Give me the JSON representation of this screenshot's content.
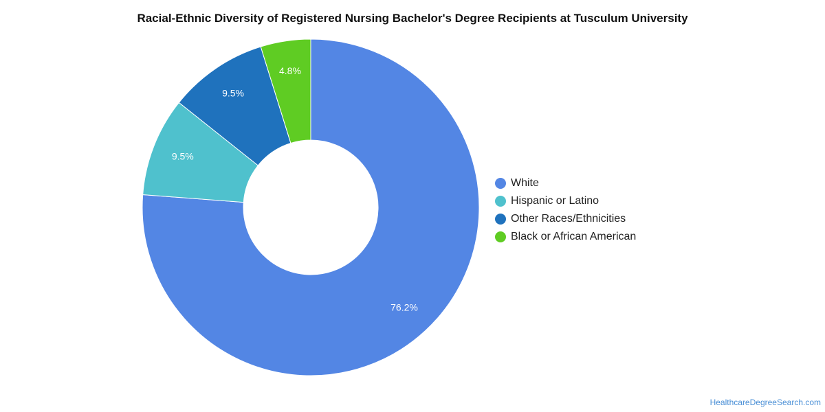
{
  "chart_data": {
    "type": "pie",
    "title": "Racial-Ethnic Diversity of Registered Nursing Bachelor's Degree Recipients at Tusculum University",
    "categories": [
      "White",
      "Hispanic or Latino",
      "Other Races/Ethnicities",
      "Black or African American"
    ],
    "values": [
      76.2,
      9.5,
      9.5,
      4.8
    ],
    "value_labels": [
      "76.2%",
      "9.5%",
      "9.5%",
      "4.8%"
    ],
    "colors": [
      "#5386e4",
      "#4fc1cd",
      "#1f72bd",
      "#5fcc23"
    ],
    "donut": true,
    "legend_position": "right"
  },
  "watermark": "HealthcareDegreeSearch.com"
}
